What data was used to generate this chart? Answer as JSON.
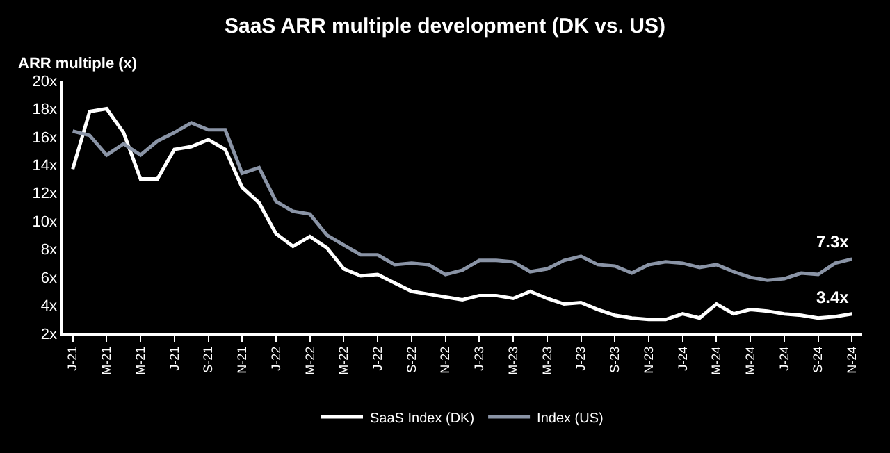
{
  "chart_data": {
    "type": "line",
    "title": "SaaS ARR multiple development (DK vs. US)",
    "ylabel": "ARR multiple (x)",
    "categories": [
      "J-21",
      null,
      "M-21",
      null,
      "M-21",
      null,
      "J-21",
      null,
      "S-21",
      null,
      "N-21",
      null,
      "J-22",
      null,
      "M-22",
      null,
      "M-22",
      null,
      "J-22",
      null,
      "S-22",
      null,
      "N-22",
      null,
      "J-23",
      null,
      "M-23",
      null,
      "M-23",
      null,
      "J-23",
      null,
      "S-23",
      null,
      "N-23",
      null,
      "J-24",
      null,
      "M-24",
      null,
      "M-24",
      null,
      "J-24",
      null,
      "S-24",
      null,
      "N-24"
    ],
    "series": [
      {
        "name": "SaaS Index (DK)",
        "color": "#ffffff",
        "values": [
          13.7,
          17.8,
          18.0,
          16.3,
          13.0,
          13.0,
          15.1,
          15.3,
          15.8,
          15.1,
          12.4,
          11.3,
          9.1,
          8.2,
          8.9,
          8.1,
          6.6,
          6.1,
          6.2,
          5.6,
          5.0,
          4.8,
          4.6,
          4.4,
          4.7,
          4.7,
          4.5,
          5.0,
          4.5,
          4.1,
          4.2,
          3.7,
          3.3,
          3.1,
          3.0,
          3.0,
          3.4,
          3.1,
          4.1,
          3.4,
          3.7,
          3.6,
          3.4,
          3.3,
          3.1,
          3.2,
          3.4
        ]
      },
      {
        "name": "Index (US)",
        "color": "#8a94a6",
        "values": [
          16.4,
          16.1,
          14.7,
          15.5,
          14.7,
          15.7,
          16.3,
          17.0,
          16.5,
          16.5,
          13.4,
          13.8,
          11.4,
          10.7,
          10.5,
          9.0,
          8.3,
          7.6,
          7.6,
          6.9,
          7.0,
          6.9,
          6.2,
          6.5,
          7.2,
          7.2,
          7.1,
          6.4,
          6.6,
          7.2,
          7.5,
          6.9,
          6.8,
          6.3,
          6.9,
          7.1,
          7.0,
          6.7,
          6.9,
          6.4,
          6.0,
          5.8,
          5.9,
          6.3,
          6.2,
          7.0,
          7.3
        ]
      }
    ],
    "ylim": [
      2,
      20
    ],
    "yticks": [
      {
        "value": 2,
        "label": "2x"
      },
      {
        "value": 4,
        "label": "4x"
      },
      {
        "value": 6,
        "label": "6x"
      },
      {
        "value": 8,
        "label": "8x"
      },
      {
        "value": 10,
        "label": "10x"
      },
      {
        "value": 12,
        "label": "12x"
      },
      {
        "value": 14,
        "label": "14x"
      },
      {
        "value": 16,
        "label": "16x"
      },
      {
        "value": 18,
        "label": "18x"
      },
      {
        "value": 20,
        "label": "20x"
      }
    ],
    "annotations": [
      {
        "text": "7.3x",
        "x": "N-24",
        "y": 7.3
      },
      {
        "text": "3.4x",
        "x": "N-24",
        "y": 3.4
      }
    ],
    "grid": false,
    "legend": "bottom",
    "marker": "none",
    "line_style": "solid"
  }
}
